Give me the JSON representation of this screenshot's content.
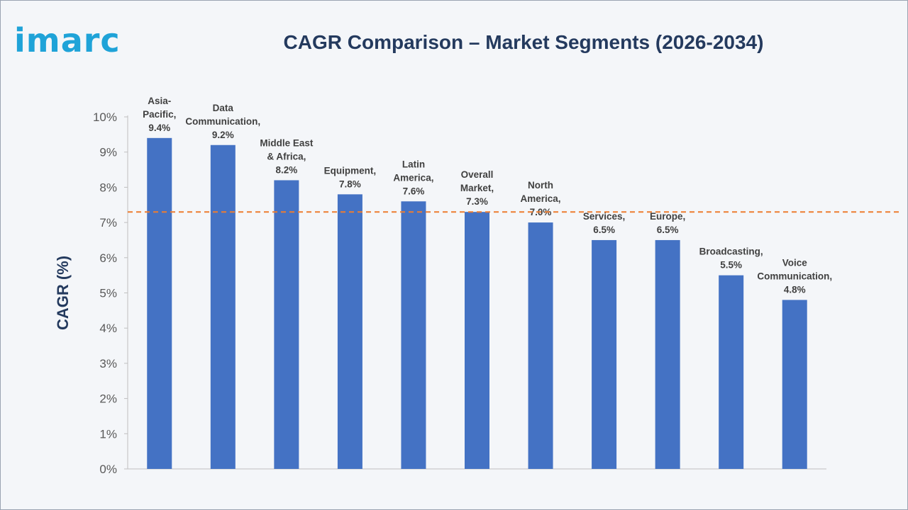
{
  "logo_text": "imarc",
  "chart_data": {
    "type": "bar",
    "title": "CAGR Comparison – Market Segments (2026-2034)",
    "xlabel": "",
    "ylabel": "CAGR (%)",
    "ylim": [
      0,
      10
    ],
    "yticks": [
      "0%",
      "1%",
      "2%",
      "3%",
      "4%",
      "5%",
      "6%",
      "7%",
      "8%",
      "9%",
      "10%"
    ],
    "categories": [
      [
        "Asia-",
        "Pacific,",
        "9.4%"
      ],
      [
        "Data",
        "Communication,",
        "9.2%"
      ],
      [
        "Middle East",
        "& Africa,",
        "8.2%"
      ],
      [
        "Equipment,",
        "7.8%"
      ],
      [
        "Latin",
        "America,",
        "7.6%"
      ],
      [
        "Overall",
        "Market,",
        "7.3%"
      ],
      [
        "North",
        "America,",
        "7.0%"
      ],
      [
        "Services,",
        "6.5%"
      ],
      [
        "Europe,",
        "6.5%"
      ],
      [
        "Broadcasting,",
        "5.5%"
      ],
      [
        "Voice",
        "Communication,",
        "4.8%"
      ]
    ],
    "values": [
      9.4,
      9.2,
      8.2,
      7.8,
      7.6,
      7.3,
      7.0,
      6.5,
      6.5,
      5.5,
      4.8
    ],
    "reference_line": 7.3,
    "grid": false,
    "colors": {
      "bar": "#4472c4",
      "reference_line": "#ed7d31",
      "axis_text": "#595959",
      "label_text": "#404040",
      "title": "#243a5e",
      "logo": "#1fa3d8"
    }
  }
}
